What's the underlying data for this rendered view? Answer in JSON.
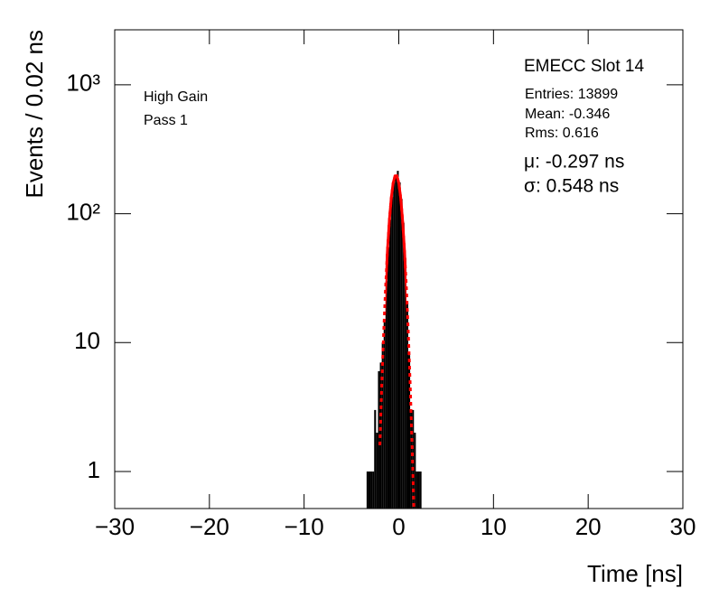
{
  "chart_data": {
    "type": "histogram",
    "title": "EMECC Slot 14",
    "stats": [
      "Entries: 13899",
      "Mean: -0.346",
      "Rms: 0.616"
    ],
    "fit_params": [
      "μ: -0.297 ns",
      "σ: 0.548 ns"
    ],
    "annotations": [
      "High Gain",
      "Pass 1"
    ],
    "xlabel": "Time [ns]",
    "ylabel": "Events / 0.02 ns",
    "bins": [
      -3.4,
      -3.2,
      -3.0,
      -2.8,
      -2.6,
      -2.4,
      -2.2,
      -2.0,
      -1.8,
      -1.6,
      -1.4,
      -1.2,
      -1.0,
      -0.8,
      -0.6,
      -0.4,
      -0.2,
      0.0,
      0.2,
      0.4,
      0.6,
      0.8,
      1.0,
      1.2,
      1.4,
      1.6,
      1.8,
      2.0,
      2.2,
      2.4,
      2.6
    ],
    "counts": [
      1,
      1,
      1,
      1,
      3,
      2,
      6,
      7,
      10,
      15,
      30,
      55,
      90,
      135,
      175,
      200,
      215,
      175,
      130,
      85,
      45,
      20,
      8,
      3,
      3,
      2,
      1,
      1,
      1,
      0
    ],
    "color": "#000000",
    "fit": {
      "color": "#ff0000",
      "range": [
        -1.4,
        0.8
      ],
      "x": [
        -2.0,
        -1.8,
        -1.6,
        -1.4,
        -1.2,
        -1.0,
        -0.8,
        -0.6,
        -0.4,
        -0.2,
        0.0,
        0.2,
        0.4,
        0.6,
        0.8,
        1.0,
        1.2,
        1.4,
        1.6
      ],
      "values": [
        1.6,
        4.65,
        11.8,
        26.4,
        51.4,
        87.8,
        131,
        172,
        196,
        197,
        173,
        133,
        89,
        52.4,
        27,
        12.2,
        4.8,
        1.65,
        0.5
      ]
    },
    "xlim": [
      -30,
      30
    ],
    "xticks": [
      {
        "value": -30,
        "label": "−30"
      },
      {
        "value": -20,
        "label": "−20"
      },
      {
        "value": -10,
        "label": "−10"
      },
      0,
      10,
      20,
      30
    ],
    "ylim": [
      0.516,
      2670
    ],
    "log_y": true,
    "yticks": [
      1,
      10,
      {
        "value": 100,
        "label": "10²"
      },
      {
        "value": 1000,
        "label": "10³"
      }
    ]
  }
}
